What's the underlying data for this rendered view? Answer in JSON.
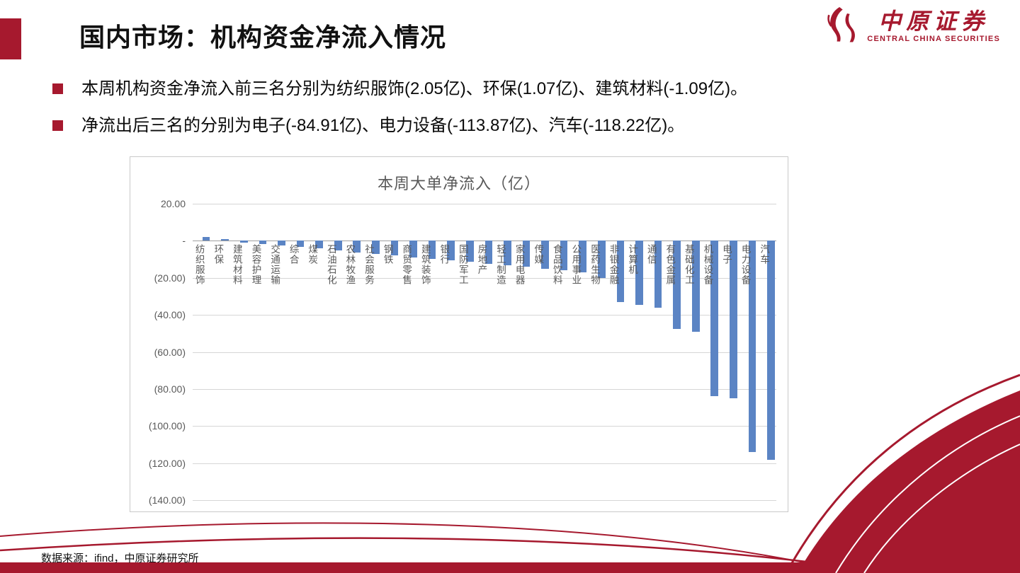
{
  "slide": {
    "title": "国内市场：机构资金净流入情况",
    "bullets": [
      "本周机构资金净流入前三名分别为纺织服饰(2.05亿)、环保(1.07亿)、建筑材料(-1.09亿)。",
      "净流出后三名的分别为电子(-84.91亿)、电力设备(-113.87亿)、汽车(-118.22亿)。"
    ],
    "footer": "数据来源：ifind，中原证券研究所"
  },
  "logo": {
    "name_cn": "中原证券",
    "name_en": "CENTRAL CHINA SECURITIES"
  },
  "colors": {
    "brand_red": "#A6192E",
    "bar_blue": "#5B84C4",
    "grid_gray": "#D6D6D6",
    "axis_gray": "#9E9E9E",
    "chart_text_gray": "#595959"
  },
  "chart_data": {
    "type": "bar",
    "title": "本周大单净流入（亿）",
    "categories": [
      "纺织服饰",
      "环保",
      "建筑材料",
      "美容护理",
      "交通运输",
      "综合",
      "煤炭",
      "石油石化",
      "农林牧渔",
      "社会服务",
      "钢铁",
      "商贸零售",
      "建筑装饰",
      "银行",
      "国防军工",
      "房地产",
      "轻工制造",
      "家用电器",
      "传媒",
      "食品饮料",
      "公用事业",
      "医药生物",
      "非银金融",
      "计算机",
      "通信",
      "有色金属",
      "基础化工",
      "机械设备",
      "电子",
      "电力设备",
      "汽车"
    ],
    "values": [
      2.05,
      1.07,
      -1.09,
      -1.6,
      -2.4,
      -3.2,
      -4.1,
      -5.2,
      -6.2,
      -7.1,
      -8.0,
      -8.9,
      -9.8,
      -10.6,
      -11.5,
      -12.4,
      -13.2,
      -14.1,
      -15.0,
      -16.0,
      -17.0,
      -20.0,
      -33.0,
      -34.5,
      -36.0,
      -47.5,
      -49.0,
      -84.0,
      -84.91,
      -113.87,
      -118.22
    ],
    "ylim": [
      -140,
      20
    ],
    "ytick_interval": 20,
    "ytick_labels": [
      "20.00",
      "-",
      "(20.00)",
      "(40.00)",
      "(60.00)",
      "(80.00)",
      "(100.00)",
      "(120.00)",
      "(140.00)"
    ],
    "grid": true,
    "legend": "none",
    "bar_color": "#5B84C4"
  }
}
